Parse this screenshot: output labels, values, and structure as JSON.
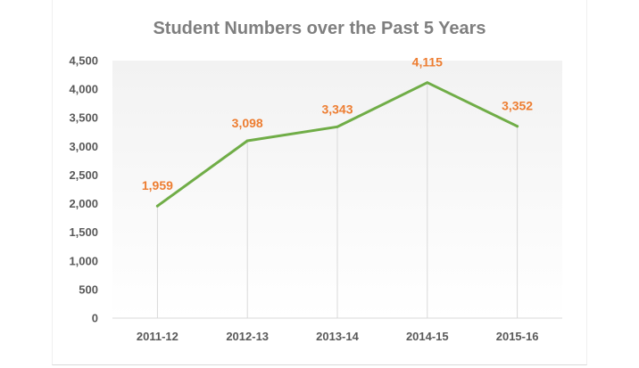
{
  "chart_data": {
    "type": "line",
    "title": "Student Numbers over the Past 5 Years",
    "xlabel": "",
    "ylabel": "",
    "categories": [
      "2011-12",
      "2012-13",
      "2013-14",
      "2014-15",
      "2015-16"
    ],
    "series": [
      {
        "values": [
          1959,
          3098,
          3343,
          4115,
          3352
        ],
        "data_labels": [
          "1,959",
          "3,098",
          "3,343",
          "4,115",
          "3,352"
        ]
      }
    ],
    "ylim": [
      0,
      4500
    ],
    "yticks": [
      0,
      500,
      1000,
      1500,
      2000,
      2500,
      3000,
      3500,
      4000,
      4500
    ],
    "ytick_labels": [
      "0",
      "500",
      "1,000",
      "1,500",
      "2,000",
      "2,500",
      "3,000",
      "3,500",
      "4,000",
      "4,500"
    ],
    "grid": false,
    "drop_lines": true,
    "legend": "none",
    "colors": {
      "line": "#70ad47",
      "data_label": "#ed7d31",
      "title": "#7f7f7f",
      "tick_label": "#595959",
      "drop_line": "#d9d9d9",
      "plot_gradient_top": "#f2f2f2",
      "plot_gradient_bottom": "#ffffff"
    }
  }
}
